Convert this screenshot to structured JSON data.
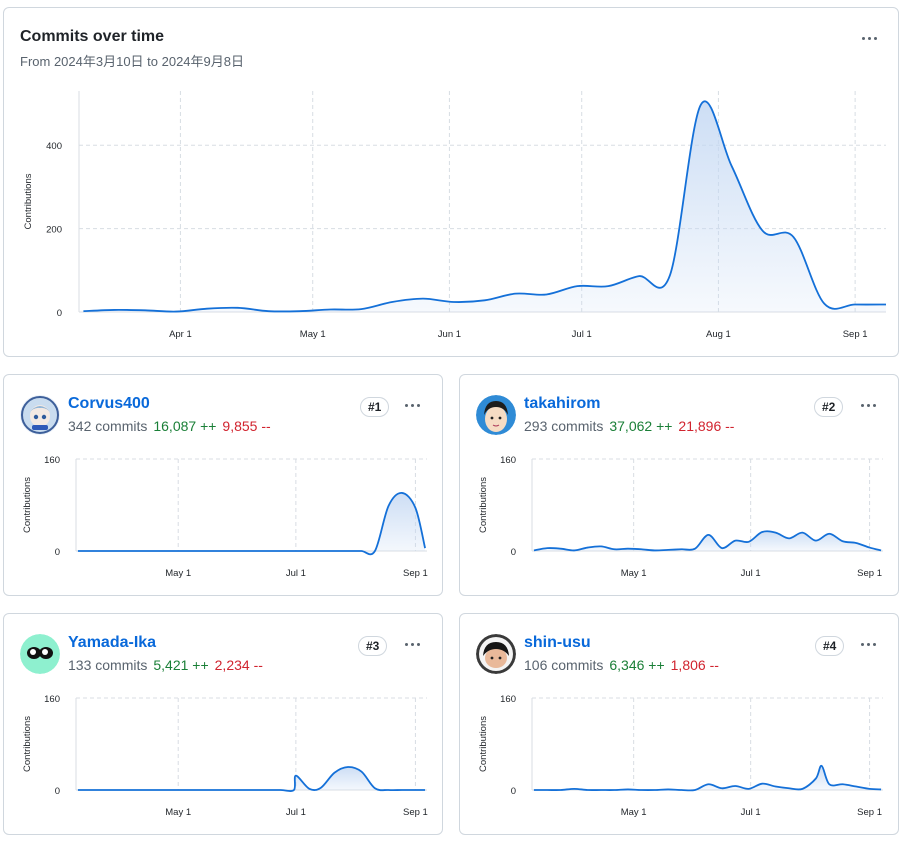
{
  "main": {
    "title": "Commits over time",
    "subtitle": "From 2024年3月10日 to 2024年9月8日"
  },
  "contributors": [
    {
      "name": "Corvus400",
      "commits": "342 commits",
      "additions": "16,087 ++",
      "deletions": "9,855 --",
      "rank": "#1"
    },
    {
      "name": "takahirom",
      "commits": "293 commits",
      "additions": "37,062 ++",
      "deletions": "21,896 --",
      "rank": "#2"
    },
    {
      "name": "Yamada-Ika",
      "commits": "133 commits",
      "additions": "5,421 ++",
      "deletions": "2,234 --",
      "rank": "#3"
    },
    {
      "name": "shin-usu",
      "commits": "106 commits",
      "additions": "6,346 ++",
      "deletions": "1,806 --",
      "rank": "#4"
    }
  ],
  "colors": {
    "line": "#1470d8",
    "fill": "#c4d8f3",
    "grid": "#d8dde3",
    "axis_text": "#1f2328"
  },
  "chart_data": [
    {
      "type": "area",
      "ylabel": "Contributions",
      "ylim": [
        0,
        530
      ],
      "yticks": [
        0,
        200,
        400
      ],
      "xticks": [
        {
          "label": "Apr 1",
          "day": 22
        },
        {
          "label": "May 1",
          "day": 52
        },
        {
          "label": "Jun 1",
          "day": 83
        },
        {
          "label": "Jul 1",
          "day": 113
        },
        {
          "label": "Aug 1",
          "day": 144
        },
        {
          "label": "Sep 1",
          "day": 175
        }
      ],
      "x": [
        0,
        7,
        14,
        21,
        28,
        35,
        42,
        49,
        56,
        63,
        70,
        77,
        84,
        91,
        98,
        105,
        112,
        119,
        126,
        133,
        140,
        147,
        154,
        161,
        168,
        175,
        182
      ],
      "values": [
        2,
        5,
        4,
        1,
        8,
        10,
        2,
        2,
        6,
        7,
        24,
        32,
        24,
        28,
        44,
        42,
        62,
        62,
        86,
        88,
        497,
        350,
        195,
        180,
        20,
        18,
        18
      ],
      "xrange": [
        -1,
        182
      ]
    },
    {
      "type": "area",
      "ylabel": "Contributions",
      "ylim": [
        0,
        160
      ],
      "yticks": [
        0,
        160
      ],
      "xticks": [
        {
          "label": "May 1",
          "day": 52
        },
        {
          "label": "Jul 1",
          "day": 113
        },
        {
          "label": "Sep 1",
          "day": 175
        }
      ],
      "x": [
        0,
        7,
        14,
        21,
        28,
        35,
        42,
        49,
        56,
        63,
        70,
        77,
        84,
        91,
        98,
        105,
        112,
        119,
        126,
        133,
        140,
        147,
        154,
        161,
        168,
        175,
        180
      ],
      "values": [
        0,
        0,
        0,
        0,
        0,
        0,
        0,
        0,
        0,
        0,
        0,
        0,
        0,
        0,
        0,
        0,
        0,
        0,
        0,
        0,
        0,
        0,
        0,
        78,
        101,
        75,
        5
      ],
      "xrange": [
        -1,
        181
      ]
    },
    {
      "type": "area",
      "ylabel": "Contributions",
      "ylim": [
        0,
        160
      ],
      "yticks": [
        0,
        160
      ],
      "xticks": [
        {
          "label": "May 1",
          "day": 52
        },
        {
          "label": "Jul 1",
          "day": 113
        },
        {
          "label": "Sep 1",
          "day": 175
        }
      ],
      "x": [
        0,
        7,
        14,
        21,
        28,
        35,
        42,
        49,
        56,
        63,
        70,
        77,
        84,
        91,
        98,
        105,
        112,
        119,
        126,
        133,
        140,
        147,
        154,
        161,
        168,
        175,
        181
      ],
      "values": [
        1,
        5,
        4,
        1,
        6,
        8,
        3,
        4,
        3,
        1,
        2,
        3,
        4,
        28,
        5,
        18,
        16,
        33,
        32,
        22,
        32,
        18,
        30,
        17,
        14,
        6,
        1
      ],
      "xrange": [
        -1,
        182
      ]
    },
    {
      "type": "area",
      "ylabel": "Contributions",
      "ylim": [
        0,
        160
      ],
      "yticks": [
        0,
        160
      ],
      "xticks": [
        {
          "label": "May 1",
          "day": 52
        },
        {
          "label": "Jul 1",
          "day": 113
        },
        {
          "label": "Sep 1",
          "day": 175
        }
      ],
      "x": [
        0,
        7,
        14,
        21,
        28,
        35,
        42,
        49,
        56,
        63,
        70,
        77,
        84,
        91,
        98,
        105,
        112,
        113,
        120,
        126,
        133,
        140,
        147,
        154,
        161,
        168,
        175,
        180
      ],
      "values": [
        0,
        0,
        0,
        0,
        0,
        0,
        0,
        0,
        0,
        0,
        0,
        0,
        0,
        0,
        0,
        0,
        0,
        25,
        2,
        4,
        30,
        40,
        32,
        3,
        0,
        0,
        0,
        0
      ],
      "xrange": [
        -1,
        181
      ]
    },
    {
      "type": "area",
      "ylabel": "Contributions",
      "ylim": [
        0,
        160
      ],
      "yticks": [
        0,
        160
      ],
      "xticks": [
        {
          "label": "May 1",
          "day": 52
        },
        {
          "label": "Jul 1",
          "day": 113
        },
        {
          "label": "Sep 1",
          "day": 175
        }
      ],
      "x": [
        0,
        7,
        14,
        21,
        28,
        35,
        42,
        49,
        56,
        63,
        70,
        77,
        84,
        91,
        98,
        105,
        112,
        119,
        126,
        133,
        140,
        147,
        150,
        154,
        161,
        168,
        175,
        181
      ],
      "values": [
        0,
        0,
        0,
        2,
        0,
        0,
        0,
        1,
        0,
        0,
        1,
        0,
        0,
        10,
        3,
        7,
        2,
        11,
        6,
        3,
        2,
        20,
        42,
        10,
        10,
        6,
        2,
        1
      ],
      "xrange": [
        -1,
        182
      ]
    }
  ]
}
